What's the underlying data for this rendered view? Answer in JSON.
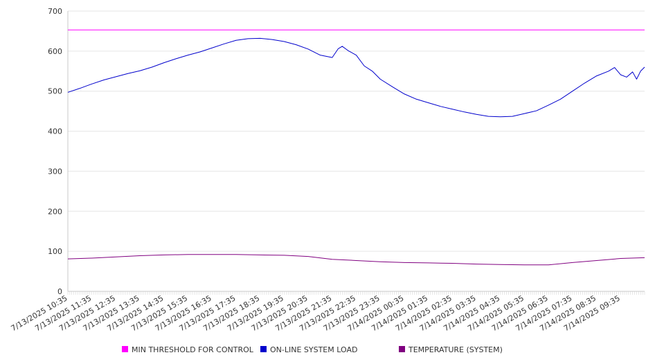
{
  "chart_data": {
    "type": "line",
    "title": "",
    "xlabel": "",
    "ylabel": "",
    "ylim": [
      0,
      700
    ],
    "y_ticks": [
      0,
      100,
      200,
      300,
      400,
      500,
      600,
      700
    ],
    "grid": "horizontal",
    "legend_position": "bottom",
    "x_start": "7/13/2025 10:35",
    "x_end": "7/14/2025 10:35",
    "x_tick_labels": [
      "7/13/2025 10:35",
      "7/13/2025 11:35",
      "7/13/2025 12:35",
      "7/13/2025 13:35",
      "7/13/2025 14:35",
      "7/13/2025 15:35",
      "7/13/2025 16:35",
      "7/13/2025 17:35",
      "7/13/2025 18:35",
      "7/13/2025 19:35",
      "7/13/2025 20:35",
      "7/13/2025 21:35",
      "7/13/2025 22:35",
      "7/13/2025 23:35",
      "7/14/2025 00:35",
      "7/14/2025 01:35",
      "7/14/2025 02:35",
      "7/14/2025 03:35",
      "7/14/2025 04:35",
      "7/14/2025 05:35",
      "7/14/2025 06:35",
      "7/14/2025 07:35",
      "7/14/2025 08:35",
      "7/14/2025 09:35"
    ],
    "series": [
      {
        "name": "MIN THRESHOLD FOR CONTROL",
        "color": "#ff00ff",
        "points": [
          [
            "7/13/2025 10:35",
            653
          ],
          [
            "7/14/2025 10:35",
            653
          ]
        ]
      },
      {
        "name": "ON-LINE SYSTEM LOAD",
        "color": "#0000cc",
        "points": [
          [
            "7/13/2025 10:35",
            497
          ],
          [
            "7/13/2025 11:05",
            507
          ],
          [
            "7/13/2025 11:35",
            518
          ],
          [
            "7/13/2025 12:05",
            528
          ],
          [
            "7/13/2025 12:35",
            536
          ],
          [
            "7/13/2025 13:05",
            544
          ],
          [
            "7/13/2025 13:35",
            551
          ],
          [
            "7/13/2025 14:05",
            560
          ],
          [
            "7/13/2025 14:35",
            571
          ],
          [
            "7/13/2025 15:05",
            581
          ],
          [
            "7/13/2025 15:35",
            590
          ],
          [
            "7/13/2025 16:05",
            598
          ],
          [
            "7/13/2025 16:35",
            608
          ],
          [
            "7/13/2025 17:05",
            618
          ],
          [
            "7/13/2025 17:35",
            627
          ],
          [
            "7/13/2025 18:05",
            631
          ],
          [
            "7/13/2025 18:35",
            632
          ],
          [
            "7/13/2025 19:05",
            629
          ],
          [
            "7/13/2025 19:35",
            624
          ],
          [
            "7/13/2025 20:05",
            616
          ],
          [
            "7/13/2025 20:35",
            605
          ],
          [
            "7/13/2025 21:05",
            590
          ],
          [
            "7/13/2025 21:20",
            587
          ],
          [
            "7/13/2025 21:35",
            584
          ],
          [
            "7/13/2025 21:50",
            606
          ],
          [
            "7/13/2025 22:00",
            612
          ],
          [
            "7/13/2025 22:15",
            601
          ],
          [
            "7/13/2025 22:35",
            590
          ],
          [
            "7/13/2025 22:55",
            563
          ],
          [
            "7/13/2025 23:15",
            550
          ],
          [
            "7/13/2025 23:35",
            530
          ],
          [
            "7/14/2025 00:05",
            511
          ],
          [
            "7/14/2025 00:35",
            493
          ],
          [
            "7/14/2025 01:05",
            480
          ],
          [
            "7/14/2025 01:35",
            471
          ],
          [
            "7/14/2025 02:05",
            462
          ],
          [
            "7/14/2025 02:35",
            455
          ],
          [
            "7/14/2025 03:05",
            448
          ],
          [
            "7/14/2025 03:35",
            442
          ],
          [
            "7/14/2025 04:05",
            437
          ],
          [
            "7/14/2025 04:35",
            436
          ],
          [
            "7/14/2025 05:05",
            437
          ],
          [
            "7/14/2025 05:35",
            444
          ],
          [
            "7/14/2025 06:05",
            451
          ],
          [
            "7/14/2025 06:35",
            465
          ],
          [
            "7/14/2025 07:05",
            480
          ],
          [
            "7/14/2025 07:35",
            500
          ],
          [
            "7/14/2025 08:05",
            520
          ],
          [
            "7/14/2025 08:35",
            538
          ],
          [
            "7/14/2025 09:05",
            550
          ],
          [
            "7/14/2025 09:20",
            559
          ],
          [
            "7/14/2025 09:35",
            541
          ],
          [
            "7/14/2025 09:50",
            535
          ],
          [
            "7/14/2025 10:05",
            548
          ],
          [
            "7/14/2025 10:15",
            530
          ],
          [
            "7/14/2025 10:25",
            550
          ],
          [
            "7/14/2025 10:35",
            560
          ]
        ]
      },
      {
        "name": "TEMPERATURE (SYSTEM)",
        "color": "#800080",
        "points": [
          [
            "7/13/2025 10:35",
            81
          ],
          [
            "7/13/2025 11:35",
            83
          ],
          [
            "7/13/2025 12:35",
            86
          ],
          [
            "7/13/2025 13:35",
            89
          ],
          [
            "7/13/2025 14:35",
            91
          ],
          [
            "7/13/2025 15:35",
            92
          ],
          [
            "7/13/2025 16:35",
            92
          ],
          [
            "7/13/2025 17:35",
            92
          ],
          [
            "7/13/2025 18:35",
            91
          ],
          [
            "7/13/2025 19:35",
            90
          ],
          [
            "7/13/2025 20:35",
            87
          ],
          [
            "7/13/2025 21:35",
            80
          ],
          [
            "7/13/2025 22:35",
            77
          ],
          [
            "7/13/2025 23:35",
            74
          ],
          [
            "7/14/2025 00:35",
            72
          ],
          [
            "7/14/2025 01:35",
            71
          ],
          [
            "7/14/2025 02:35",
            70
          ],
          [
            "7/14/2025 03:35",
            68
          ],
          [
            "7/14/2025 04:35",
            67
          ],
          [
            "7/14/2025 05:35",
            66
          ],
          [
            "7/14/2025 06:35",
            66
          ],
          [
            "7/14/2025 07:35",
            72
          ],
          [
            "7/14/2025 08:35",
            77
          ],
          [
            "7/14/2025 09:35",
            82
          ],
          [
            "7/14/2025 10:35",
            84
          ]
        ]
      }
    ]
  }
}
